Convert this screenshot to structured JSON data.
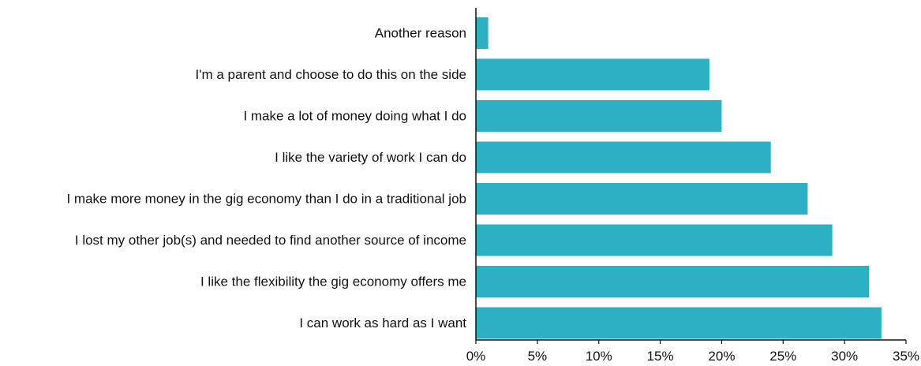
{
  "chart_data": {
    "type": "bar",
    "orientation": "horizontal",
    "categories": [
      "Another reason",
      "I'm a parent and choose to do this on the side",
      "I make a lot of money doing what I do",
      "I like the variety of work I can do",
      "I make more money in the gig economy than I do in a traditional job",
      "I lost my other job(s) and needed to find another source of income",
      "I like the flexibility the gig economy offers me",
      "I can work as hard as I want"
    ],
    "values": [
      1,
      19,
      20,
      24,
      27,
      29,
      32,
      33
    ],
    "unit": "%",
    "xlim": [
      0,
      35
    ],
    "xticks": [
      0,
      5,
      10,
      15,
      20,
      25,
      30,
      35
    ],
    "xtick_labels": [
      "0%",
      "5%",
      "10%",
      "15%",
      "20%",
      "25%",
      "30%",
      "35%"
    ],
    "title": "",
    "xlabel": "",
    "ylabel": "",
    "grid": false,
    "bar_color": "#2cb1c4"
  }
}
